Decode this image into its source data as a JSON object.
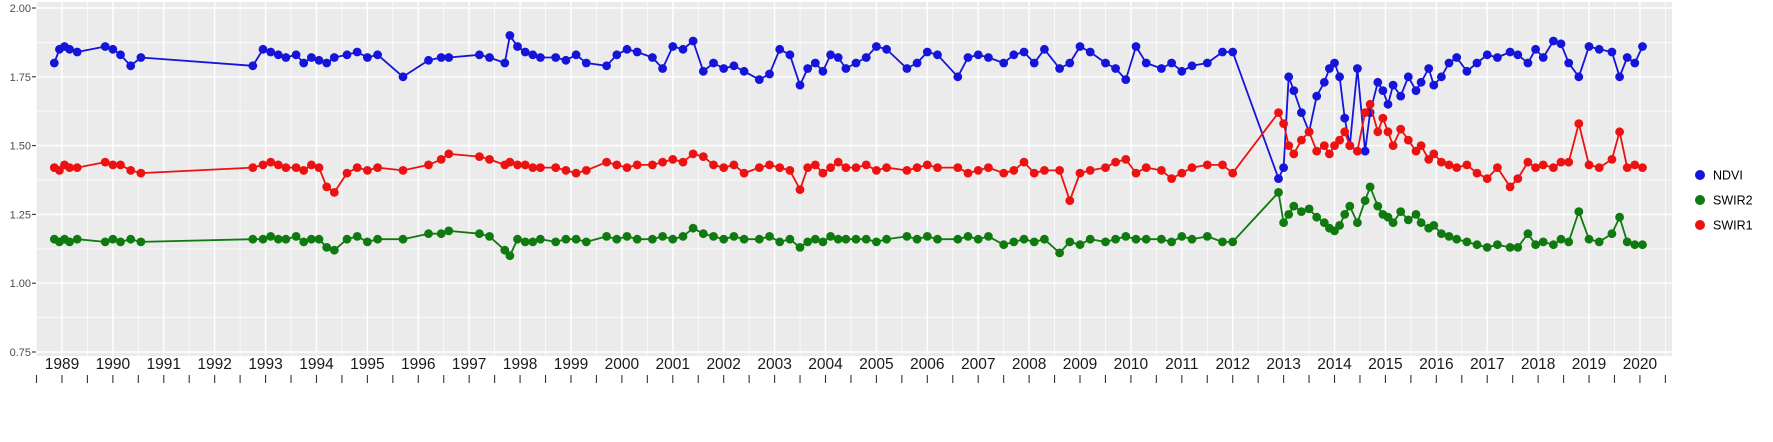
{
  "chart_data": {
    "type": "line",
    "title": "",
    "xlabel": "",
    "ylabel": "",
    "xlim": [
      1988.49,
      2020.63
    ],
    "ylim": [
      0.75,
      2.0
    ],
    "yticks": [
      0.75,
      1.0,
      1.25,
      1.5,
      1.75,
      2.0
    ],
    "ytick_labels": [
      "0.75",
      "1.00",
      "1.25",
      "1.50",
      "1.75",
      "2.00"
    ],
    "xticks": [
      1989,
      1990,
      1991,
      1992,
      1993,
      1994,
      1995,
      1996,
      1997,
      1998,
      1999,
      2000,
      2001,
      2002,
      2003,
      2004,
      2005,
      2006,
      2007,
      2008,
      2009,
      2010,
      2011,
      2012,
      2013,
      2014,
      2015,
      2016,
      2017,
      2018,
      2019,
      2020
    ],
    "xtick_labels": [
      "1989",
      "1990",
      "1991",
      "1992",
      "1993",
      "1994",
      "1995",
      "1996",
      "1997",
      "1998",
      "1999",
      "2000",
      "2001",
      "2002",
      "2003",
      "2004",
      "2005",
      "2006",
      "2007",
      "2008",
      "2009",
      "2010",
      "2011",
      "2012",
      "2013",
      "2014",
      "2015",
      "2016",
      "2017",
      "2018",
      "2019",
      "2020"
    ],
    "grid": true,
    "legend_position": "right",
    "style": {
      "panel_background": "#EBEBEB",
      "grid_color": "#FFFFFF",
      "axis_text_color_y": "#4D4D4D",
      "axis_text_color_x": "#1A1A1A",
      "tick_color": "#333333"
    },
    "legend": [
      {
        "label": "NDVI",
        "color": "#1414DB"
      },
      {
        "label": "SWIR2",
        "color": "#0F7A0F"
      },
      {
        "label": "SWIR1",
        "color": "#EE1111"
      }
    ],
    "x": [
      1988.85,
      1988.95,
      1989.05,
      1989.15,
      1989.3,
      1989.85,
      1990.0,
      1990.15,
      1990.35,
      1990.55,
      1992.75,
      1992.95,
      1993.1,
      1993.25,
      1993.4,
      1993.6,
      1993.75,
      1993.9,
      1994.05,
      1994.2,
      1994.35,
      1994.6,
      1994.8,
      1995.0,
      1995.2,
      1995.7,
      1996.2,
      1996.45,
      1996.6,
      1997.2,
      1997.4,
      1997.7,
      1997.8,
      1997.95,
      1998.1,
      1998.25,
      1998.4,
      1998.7,
      1998.9,
      1999.1,
      1999.3,
      1999.7,
      1999.9,
      2000.1,
      2000.3,
      2000.6,
      2000.8,
      2001.0,
      2001.2,
      2001.4,
      2001.6,
      2001.8,
      2002.0,
      2002.2,
      2002.4,
      2002.7,
      2002.9,
      2003.1,
      2003.3,
      2003.5,
      2003.65,
      2003.8,
      2003.95,
      2004.1,
      2004.25,
      2004.4,
      2004.6,
      2004.8,
      2005.0,
      2005.2,
      2005.6,
      2005.8,
      2006.0,
      2006.2,
      2006.6,
      2006.8,
      2007.0,
      2007.2,
      2007.5,
      2007.7,
      2007.9,
      2008.1,
      2008.3,
      2008.6,
      2008.8,
      2009.0,
      2009.2,
      2009.5,
      2009.7,
      2009.9,
      2010.1,
      2010.3,
      2010.6,
      2010.8,
      2011.0,
      2011.2,
      2011.5,
      2011.8,
      2012.0,
      2012.9,
      2013.0,
      2013.1,
      2013.2,
      2013.35,
      2013.5,
      2013.65,
      2013.8,
      2013.9,
      2014.0,
      2014.1,
      2014.2,
      2014.3,
      2014.45,
      2014.6,
      2014.7,
      2014.85,
      2014.95,
      2015.05,
      2015.15,
      2015.3,
      2015.45,
      2015.6,
      2015.7,
      2015.85,
      2015.95,
      2016.1,
      2016.25,
      2016.4,
      2016.6,
      2016.8,
      2017.0,
      2017.2,
      2017.45,
      2017.6,
      2017.8,
      2017.95,
      2018.1,
      2018.3,
      2018.45,
      2018.6,
      2018.8,
      2019.0,
      2019.2,
      2019.45,
      2019.6,
      2019.75,
      2019.9,
      2020.05
    ],
    "series": [
      {
        "name": "NDVI",
        "color": "#1414DB",
        "values": [
          1.8,
          1.85,
          1.86,
          1.85,
          1.84,
          1.86,
          1.85,
          1.83,
          1.79,
          1.82,
          1.79,
          1.85,
          1.84,
          1.83,
          1.82,
          1.83,
          1.8,
          1.82,
          1.81,
          1.8,
          1.82,
          1.83,
          1.84,
          1.82,
          1.83,
          1.75,
          1.81,
          1.82,
          1.82,
          1.83,
          1.82,
          1.8,
          1.9,
          1.86,
          1.84,
          1.83,
          1.82,
          1.82,
          1.81,
          1.83,
          1.8,
          1.79,
          1.83,
          1.85,
          1.84,
          1.82,
          1.78,
          1.86,
          1.85,
          1.88,
          1.77,
          1.8,
          1.78,
          1.79,
          1.77,
          1.74,
          1.76,
          1.85,
          1.83,
          1.72,
          1.78,
          1.8,
          1.77,
          1.83,
          1.82,
          1.78,
          1.8,
          1.82,
          1.86,
          1.85,
          1.78,
          1.8,
          1.84,
          1.83,
          1.75,
          1.82,
          1.83,
          1.82,
          1.8,
          1.83,
          1.84,
          1.8,
          1.85,
          1.78,
          1.8,
          1.86,
          1.84,
          1.8,
          1.78,
          1.74,
          1.86,
          1.8,
          1.78,
          1.8,
          1.77,
          1.79,
          1.8,
          1.84,
          1.84,
          1.38,
          1.42,
          1.75,
          1.7,
          1.62,
          1.55,
          1.68,
          1.73,
          1.78,
          1.8,
          1.75,
          1.6,
          1.5,
          1.78,
          1.48,
          1.62,
          1.73,
          1.7,
          1.65,
          1.72,
          1.68,
          1.75,
          1.7,
          1.73,
          1.78,
          1.72,
          1.75,
          1.8,
          1.82,
          1.77,
          1.8,
          1.83,
          1.82,
          1.84,
          1.83,
          1.8,
          1.85,
          1.82,
          1.88,
          1.87,
          1.8,
          1.75,
          1.86,
          1.85,
          1.84,
          1.75,
          1.82,
          1.8,
          1.86
        ]
      },
      {
        "name": "SWIR2",
        "color": "#0F7A0F",
        "values": [
          1.16,
          1.15,
          1.16,
          1.15,
          1.16,
          1.15,
          1.16,
          1.15,
          1.16,
          1.15,
          1.16,
          1.16,
          1.17,
          1.16,
          1.16,
          1.17,
          1.15,
          1.16,
          1.16,
          1.13,
          1.12,
          1.16,
          1.17,
          1.15,
          1.16,
          1.16,
          1.18,
          1.18,
          1.19,
          1.18,
          1.17,
          1.12,
          1.1,
          1.16,
          1.15,
          1.15,
          1.16,
          1.15,
          1.16,
          1.16,
          1.15,
          1.17,
          1.16,
          1.17,
          1.16,
          1.16,
          1.17,
          1.16,
          1.17,
          1.2,
          1.18,
          1.17,
          1.16,
          1.17,
          1.16,
          1.16,
          1.17,
          1.15,
          1.16,
          1.13,
          1.15,
          1.16,
          1.15,
          1.17,
          1.16,
          1.16,
          1.16,
          1.16,
          1.15,
          1.16,
          1.17,
          1.16,
          1.17,
          1.16,
          1.16,
          1.17,
          1.16,
          1.17,
          1.14,
          1.15,
          1.16,
          1.15,
          1.16,
          1.11,
          1.15,
          1.14,
          1.16,
          1.15,
          1.16,
          1.17,
          1.16,
          1.16,
          1.16,
          1.15,
          1.17,
          1.16,
          1.17,
          1.15,
          1.15,
          1.33,
          1.22,
          1.25,
          1.28,
          1.26,
          1.27,
          1.24,
          1.22,
          1.2,
          1.19,
          1.21,
          1.25,
          1.28,
          1.22,
          1.3,
          1.35,
          1.28,
          1.25,
          1.24,
          1.22,
          1.26,
          1.23,
          1.25,
          1.22,
          1.2,
          1.21,
          1.18,
          1.17,
          1.16,
          1.15,
          1.14,
          1.13,
          1.14,
          1.13,
          1.13,
          1.18,
          1.14,
          1.15,
          1.14,
          1.16,
          1.15,
          1.26,
          1.16,
          1.15,
          1.18,
          1.24,
          1.15,
          1.14,
          1.14
        ]
      },
      {
        "name": "SWIR1",
        "color": "#EE1111",
        "values": [
          1.42,
          1.41,
          1.43,
          1.42,
          1.42,
          1.44,
          1.43,
          1.43,
          1.41,
          1.4,
          1.42,
          1.43,
          1.44,
          1.43,
          1.42,
          1.42,
          1.41,
          1.43,
          1.42,
          1.35,
          1.33,
          1.4,
          1.42,
          1.41,
          1.42,
          1.41,
          1.43,
          1.45,
          1.47,
          1.46,
          1.45,
          1.43,
          1.44,
          1.43,
          1.43,
          1.42,
          1.42,
          1.42,
          1.41,
          1.4,
          1.41,
          1.44,
          1.43,
          1.42,
          1.43,
          1.43,
          1.44,
          1.45,
          1.44,
          1.47,
          1.46,
          1.43,
          1.42,
          1.43,
          1.4,
          1.42,
          1.43,
          1.42,
          1.41,
          1.34,
          1.42,
          1.43,
          1.4,
          1.42,
          1.44,
          1.42,
          1.42,
          1.43,
          1.41,
          1.42,
          1.41,
          1.42,
          1.43,
          1.42,
          1.42,
          1.4,
          1.41,
          1.42,
          1.4,
          1.41,
          1.44,
          1.4,
          1.41,
          1.41,
          1.3,
          1.4,
          1.41,
          1.42,
          1.44,
          1.45,
          1.4,
          1.42,
          1.41,
          1.38,
          1.4,
          1.42,
          1.43,
          1.43,
          1.4,
          1.62,
          1.58,
          1.5,
          1.47,
          1.52,
          1.55,
          1.48,
          1.5,
          1.47,
          1.5,
          1.52,
          1.55,
          1.5,
          1.48,
          1.62,
          1.65,
          1.55,
          1.6,
          1.55,
          1.5,
          1.56,
          1.52,
          1.48,
          1.5,
          1.45,
          1.47,
          1.44,
          1.43,
          1.42,
          1.43,
          1.4,
          1.38,
          1.42,
          1.35,
          1.38,
          1.44,
          1.42,
          1.43,
          1.42,
          1.44,
          1.44,
          1.58,
          1.43,
          1.42,
          1.45,
          1.55,
          1.42,
          1.43,
          1.42
        ]
      }
    ]
  }
}
